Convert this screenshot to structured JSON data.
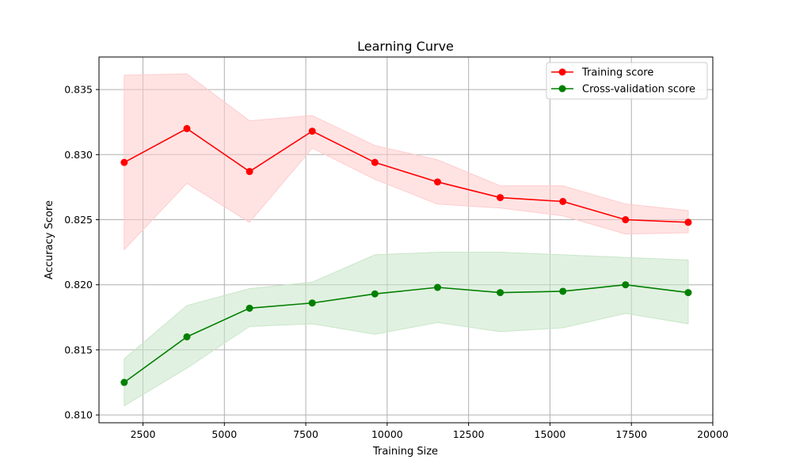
{
  "chart_data": {
    "type": "line",
    "title": "Learning Curve",
    "xlabel": "Training Size",
    "ylabel": "Accuracy Score",
    "xlim": [
      1150,
      20000
    ],
    "ylim": [
      0.8094,
      0.8375
    ],
    "x_ticks": [
      2500,
      5000,
      7500,
      10000,
      12500,
      15000,
      17500,
      20000
    ],
    "y_ticks": [
      0.81,
      0.815,
      0.82,
      0.825,
      0.83,
      0.835
    ],
    "y_tick_labels": [
      "0.810",
      "0.815",
      "0.820",
      "0.825",
      "0.830",
      "0.835"
    ],
    "grid": true,
    "legend_position": "top-right",
    "x": [
      1924,
      3849,
      5773,
      7698,
      9622,
      11547,
      13471,
      15396,
      17320,
      19245
    ],
    "series": [
      {
        "name": "Training score",
        "color": "#ff0000",
        "band_color": "#ffcccc",
        "values": [
          0.8294,
          0.832,
          0.8287,
          0.8318,
          0.8294,
          0.8279,
          0.8267,
          0.8264,
          0.825,
          0.8248
        ],
        "upper": [
          0.8361,
          0.8362,
          0.8326,
          0.833,
          0.8307,
          0.8296,
          0.8276,
          0.8276,
          0.8262,
          0.8257
        ],
        "lower": [
          0.8227,
          0.8278,
          0.8248,
          0.8305,
          0.8281,
          0.8262,
          0.8259,
          0.8253,
          0.8239,
          0.824
        ]
      },
      {
        "name": "Cross-validation score",
        "color": "#008000",
        "band_color": "#c8e6c8",
        "values": [
          0.8125,
          0.816,
          0.8182,
          0.8186,
          0.8193,
          0.8198,
          0.8194,
          0.8195,
          0.82,
          0.8194
        ],
        "upper": [
          0.8143,
          0.8184,
          0.8197,
          0.8202,
          0.8223,
          0.8225,
          0.8225,
          0.8223,
          0.8221,
          0.8219
        ],
        "lower": [
          0.8107,
          0.8136,
          0.8168,
          0.817,
          0.8162,
          0.8171,
          0.8164,
          0.8167,
          0.8178,
          0.817
        ]
      }
    ]
  }
}
